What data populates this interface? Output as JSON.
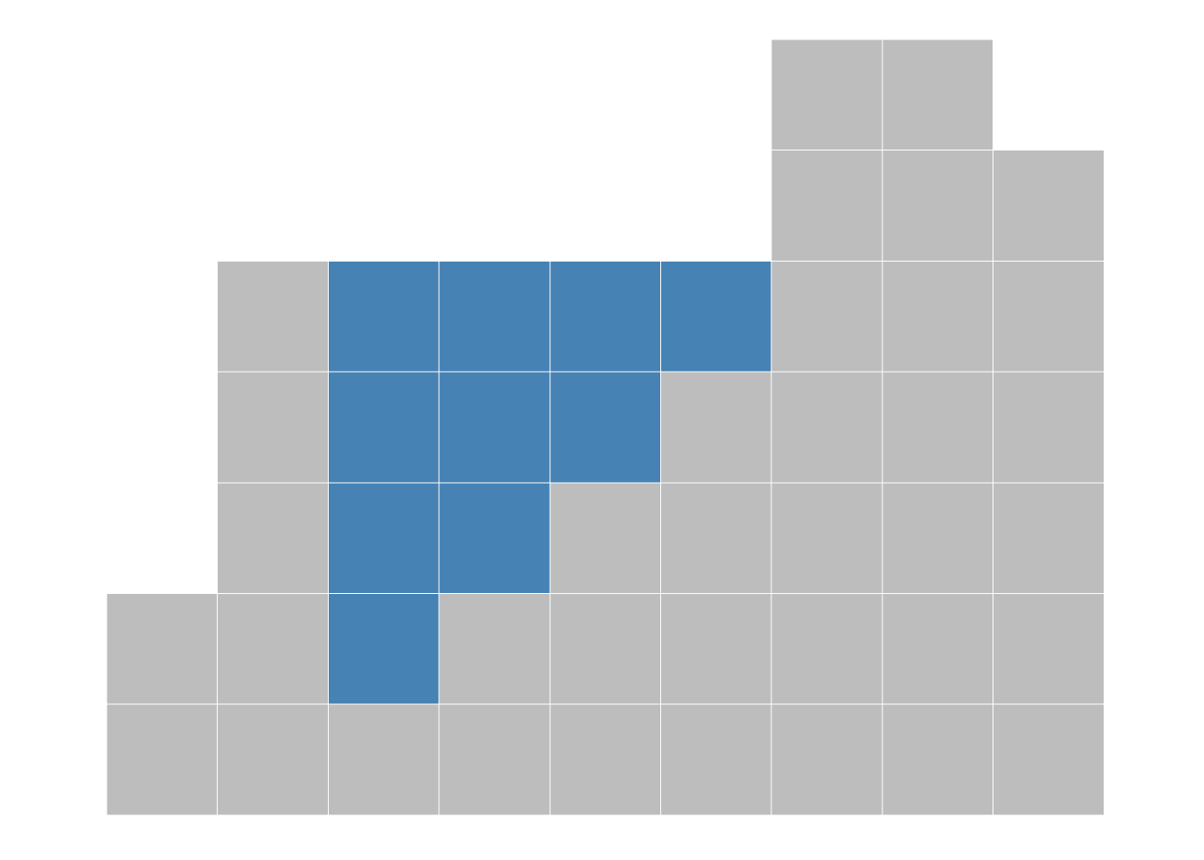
{
  "chart_data": {
    "type": "heatmap",
    "title": "",
    "xlabel": "",
    "ylabel": "",
    "n_columns": 9,
    "n_rows": 7,
    "row_order": "top-to-bottom",
    "colors": {
      "filled": "#bdbdbd",
      "highlighted": "#4682b4"
    },
    "legend": {
      "0": "empty",
      "1": "filled",
      "2": "highlighted"
    },
    "grid": [
      [
        0,
        0,
        0,
        0,
        0,
        0,
        1,
        1,
        0
      ],
      [
        0,
        0,
        0,
        0,
        0,
        0,
        1,
        1,
        1
      ],
      [
        0,
        1,
        2,
        2,
        2,
        2,
        1,
        1,
        1
      ],
      [
        0,
        1,
        2,
        2,
        2,
        1,
        1,
        1,
        1
      ],
      [
        0,
        1,
        2,
        2,
        1,
        1,
        1,
        1,
        1
      ],
      [
        1,
        1,
        2,
        1,
        1,
        1,
        1,
        1,
        1
      ],
      [
        1,
        1,
        1,
        1,
        1,
        1,
        1,
        1,
        1
      ]
    ]
  }
}
